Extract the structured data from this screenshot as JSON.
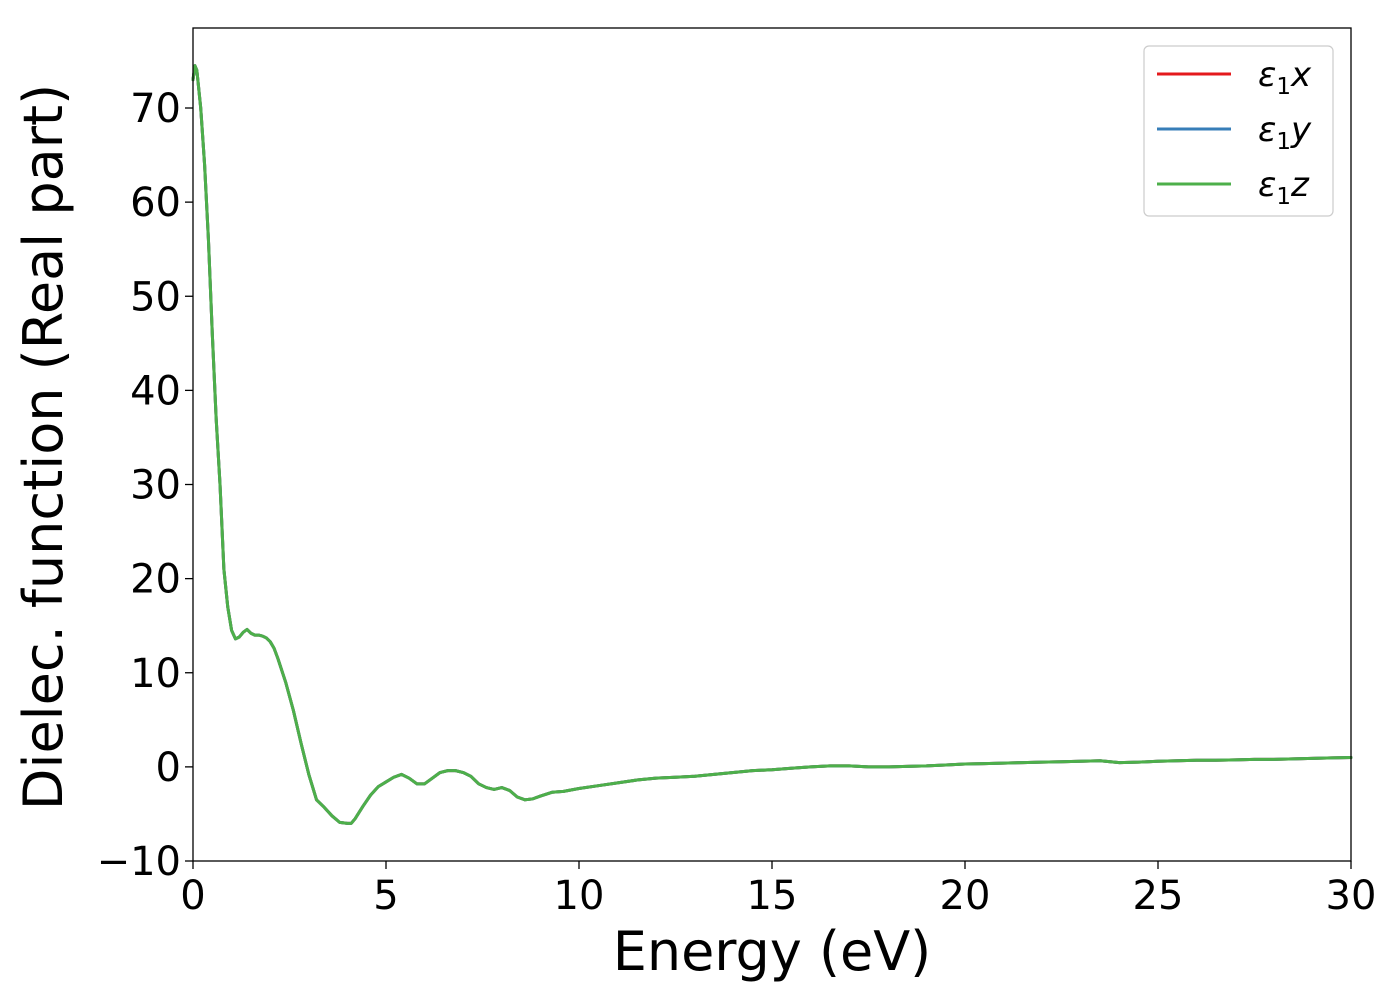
{
  "chart_data": {
    "type": "line",
    "xlabel": "Energy (eV)",
    "ylabel": "Dielec. function (Real part)",
    "xlim": [
      0,
      30
    ],
    "ylim": [
      -10,
      78.5
    ],
    "xticks": [
      0,
      5,
      10,
      15,
      20,
      25,
      30
    ],
    "yticks": [
      -10,
      0,
      10,
      20,
      30,
      40,
      50,
      60,
      70
    ],
    "xtick_labels": [
      "0",
      "5",
      "10",
      "15",
      "20",
      "25",
      "30"
    ],
    "ytick_labels": [
      "−10",
      "0",
      "10",
      "20",
      "30",
      "40",
      "50",
      "60",
      "70"
    ],
    "grid": false,
    "legend_position": "top-right",
    "series": [
      {
        "name": "ε1x",
        "color": "#e41a1c",
        "x": [
          0,
          0.05,
          0.1,
          0.2,
          0.3,
          0.4,
          0.5,
          0.6,
          0.7,
          0.8,
          0.9,
          1.0,
          1.1,
          1.2,
          1.3,
          1.4,
          1.5,
          1.6,
          1.7,
          1.8,
          1.9,
          2.0,
          2.1,
          2.2,
          2.4,
          2.6,
          2.8,
          3.0,
          3.2,
          3.4,
          3.6,
          3.8,
          4.0,
          4.1,
          4.2,
          4.4,
          4.6,
          4.8,
          5.0,
          5.2,
          5.4,
          5.6,
          5.8,
          6.0,
          6.2,
          6.4,
          6.6,
          6.8,
          7.0,
          7.2,
          7.4,
          7.6,
          7.8,
          8.0,
          8.2,
          8.4,
          8.6,
          8.8,
          9.0,
          9.3,
          9.6,
          10.0,
          10.5,
          11.0,
          11.5,
          12.0,
          12.5,
          13.0,
          13.5,
          14.0,
          14.5,
          15.0,
          15.5,
          16.0,
          16.5,
          17.0,
          17.5,
          18.0,
          18.5,
          19.0,
          19.5,
          20.0,
          20.5,
          21.0,
          21.5,
          22.0,
          22.5,
          23.0,
          23.5,
          24.0,
          24.5,
          25.0,
          25.5,
          26.0,
          26.5,
          27.0,
          27.5,
          28.0,
          28.5,
          29.0,
          29.5,
          30.0
        ],
        "y": [
          73,
          74.5,
          74,
          70,
          64,
          56,
          46,
          37,
          30,
          21,
          17,
          14.5,
          13.6,
          13.8,
          14.3,
          14.6,
          14.2,
          14.0,
          14.0,
          13.9,
          13.7,
          13.3,
          12.6,
          11.5,
          9,
          6,
          2.5,
          -0.8,
          -3.5,
          -4.3,
          -5.2,
          -5.9,
          -6.0,
          -6.0,
          -5.5,
          -4.2,
          -3,
          -2.1,
          -1.6,
          -1.1,
          -0.8,
          -1.2,
          -1.8,
          -1.8,
          -1.2,
          -0.6,
          -0.4,
          -0.4,
          -0.6,
          -1.0,
          -1.8,
          -2.2,
          -2.4,
          -2.2,
          -2.5,
          -3.2,
          -3.5,
          -3.4,
          -3.1,
          -2.7,
          -2.6,
          -2.3,
          -2.0,
          -1.7,
          -1.4,
          -1.2,
          -1.1,
          -1.0,
          -0.8,
          -0.6,
          -0.4,
          -0.3,
          -0.15,
          0.0,
          0.1,
          0.1,
          0.0,
          0.0,
          0.05,
          0.1,
          0.2,
          0.3,
          0.35,
          0.4,
          0.45,
          0.5,
          0.55,
          0.6,
          0.65,
          0.45,
          0.5,
          0.6,
          0.65,
          0.7,
          0.7,
          0.75,
          0.8,
          0.8,
          0.85,
          0.9,
          0.95,
          1.0
        ]
      },
      {
        "name": "ε1y",
        "color": "#377eb8",
        "x": [
          0,
          0.05,
          0.1,
          0.2,
          0.3,
          0.4,
          0.5,
          0.6,
          0.7,
          0.8,
          0.9,
          1.0,
          1.1,
          1.2,
          1.3,
          1.4,
          1.5,
          1.6,
          1.7,
          1.8,
          1.9,
          2.0,
          2.1,
          2.2,
          2.4,
          2.6,
          2.8,
          3.0,
          3.2,
          3.4,
          3.6,
          3.8,
          4.0,
          4.1,
          4.2,
          4.4,
          4.6,
          4.8,
          5.0,
          5.2,
          5.4,
          5.6,
          5.8,
          6.0,
          6.2,
          6.4,
          6.6,
          6.8,
          7.0,
          7.2,
          7.4,
          7.6,
          7.8,
          8.0,
          8.2,
          8.4,
          8.6,
          8.8,
          9.0,
          9.3,
          9.6,
          10.0,
          10.5,
          11.0,
          11.5,
          12.0,
          12.5,
          13.0,
          13.5,
          14.0,
          14.5,
          15.0,
          15.5,
          16.0,
          16.5,
          17.0,
          17.5,
          18.0,
          18.5,
          19.0,
          19.5,
          20.0,
          20.5,
          21.0,
          21.5,
          22.0,
          22.5,
          23.0,
          23.5,
          24.0,
          24.5,
          25.0,
          25.5,
          26.0,
          26.5,
          27.0,
          27.5,
          28.0,
          28.5,
          29.0,
          29.5,
          30.0
        ],
        "y": [
          73,
          74.5,
          74,
          70,
          64,
          56,
          46,
          37,
          30,
          21,
          17,
          14.5,
          13.6,
          13.8,
          14.3,
          14.6,
          14.2,
          14.0,
          14.0,
          13.9,
          13.7,
          13.3,
          12.6,
          11.5,
          9,
          6,
          2.5,
          -0.8,
          -3.5,
          -4.3,
          -5.2,
          -5.9,
          -6.0,
          -6.0,
          -5.5,
          -4.2,
          -3,
          -2.1,
          -1.6,
          -1.1,
          -0.8,
          -1.2,
          -1.8,
          -1.8,
          -1.2,
          -0.6,
          -0.4,
          -0.4,
          -0.6,
          -1.0,
          -1.8,
          -2.2,
          -2.4,
          -2.2,
          -2.5,
          -3.2,
          -3.5,
          -3.4,
          -3.1,
          -2.7,
          -2.6,
          -2.3,
          -2.0,
          -1.7,
          -1.4,
          -1.2,
          -1.1,
          -1.0,
          -0.8,
          -0.6,
          -0.4,
          -0.3,
          -0.15,
          0.0,
          0.1,
          0.1,
          0.0,
          0.0,
          0.05,
          0.1,
          0.2,
          0.3,
          0.35,
          0.4,
          0.45,
          0.5,
          0.55,
          0.6,
          0.65,
          0.45,
          0.5,
          0.6,
          0.65,
          0.7,
          0.7,
          0.75,
          0.8,
          0.8,
          0.85,
          0.9,
          0.95,
          1.0
        ]
      },
      {
        "name": "ε1z",
        "color": "#4daf4a",
        "x": [
          0,
          0.05,
          0.1,
          0.2,
          0.3,
          0.4,
          0.5,
          0.6,
          0.7,
          0.8,
          0.9,
          1.0,
          1.1,
          1.2,
          1.3,
          1.4,
          1.5,
          1.6,
          1.7,
          1.8,
          1.9,
          2.0,
          2.1,
          2.2,
          2.4,
          2.6,
          2.8,
          3.0,
          3.2,
          3.4,
          3.6,
          3.8,
          4.0,
          4.1,
          4.2,
          4.4,
          4.6,
          4.8,
          5.0,
          5.2,
          5.4,
          5.6,
          5.8,
          6.0,
          6.2,
          6.4,
          6.6,
          6.8,
          7.0,
          7.2,
          7.4,
          7.6,
          7.8,
          8.0,
          8.2,
          8.4,
          8.6,
          8.8,
          9.0,
          9.3,
          9.6,
          10.0,
          10.5,
          11.0,
          11.5,
          12.0,
          12.5,
          13.0,
          13.5,
          14.0,
          14.5,
          15.0,
          15.5,
          16.0,
          16.5,
          17.0,
          17.5,
          18.0,
          18.5,
          19.0,
          19.5,
          20.0,
          20.5,
          21.0,
          21.5,
          22.0,
          22.5,
          23.0,
          23.5,
          24.0,
          24.5,
          25.0,
          25.5,
          26.0,
          26.5,
          27.0,
          27.5,
          28.0,
          28.5,
          29.0,
          29.5,
          30.0
        ],
        "y": [
          73,
          74.5,
          74,
          70,
          64,
          56,
          46,
          37,
          30,
          21,
          17,
          14.5,
          13.6,
          13.8,
          14.3,
          14.6,
          14.2,
          14.0,
          14.0,
          13.9,
          13.7,
          13.3,
          12.6,
          11.5,
          9,
          6,
          2.5,
          -0.8,
          -3.5,
          -4.3,
          -5.2,
          -5.9,
          -6.0,
          -6.0,
          -5.5,
          -4.2,
          -3,
          -2.1,
          -1.6,
          -1.1,
          -0.8,
          -1.2,
          -1.8,
          -1.8,
          -1.2,
          -0.6,
          -0.4,
          -0.4,
          -0.6,
          -1.0,
          -1.8,
          -2.2,
          -2.4,
          -2.2,
          -2.5,
          -3.2,
          -3.5,
          -3.4,
          -3.1,
          -2.7,
          -2.6,
          -2.3,
          -2.0,
          -1.7,
          -1.4,
          -1.2,
          -1.1,
          -1.0,
          -0.8,
          -0.6,
          -0.4,
          -0.3,
          -0.15,
          0.0,
          0.1,
          0.1,
          0.0,
          0.0,
          0.05,
          0.1,
          0.2,
          0.3,
          0.35,
          0.4,
          0.45,
          0.5,
          0.55,
          0.6,
          0.65,
          0.45,
          0.5,
          0.6,
          0.65,
          0.7,
          0.7,
          0.75,
          0.8,
          0.8,
          0.85,
          0.9,
          0.95,
          1.0
        ]
      }
    ],
    "legend": [
      {
        "symbol": "ε",
        "sub": "1",
        "axis": "x"
      },
      {
        "symbol": "ε",
        "sub": "1",
        "axis": "y"
      },
      {
        "symbol": "ε",
        "sub": "1",
        "axis": "z"
      }
    ]
  }
}
